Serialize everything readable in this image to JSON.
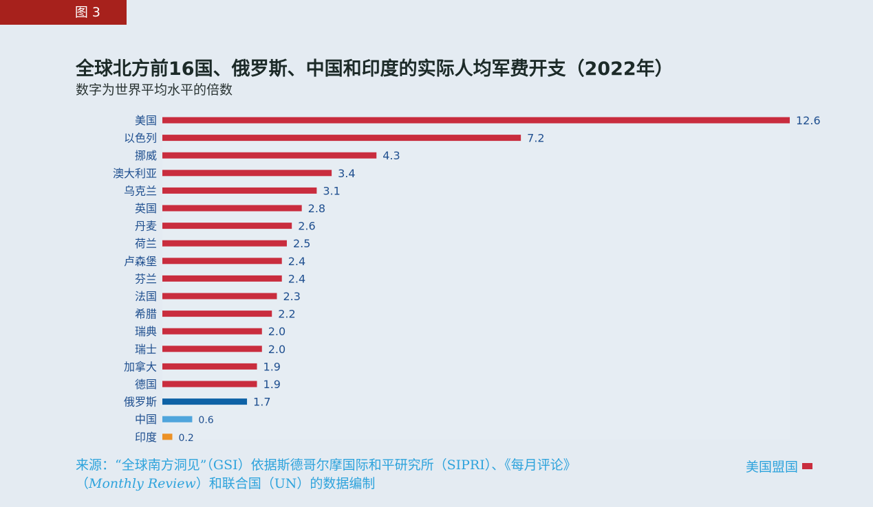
{
  "figure_label": "图 3",
  "chart_data": {
    "type": "bar",
    "orientation": "horizontal",
    "title": "全球北方前16国、俄罗斯、中国和印度的实际人均军费开支（2022年）",
    "subtitle": "数字为世界平均水平的倍数",
    "categories": [
      "美国",
      "以色列",
      "挪威",
      "澳大利亚",
      "乌克兰",
      "英国",
      "丹麦",
      "荷兰",
      "卢森堡",
      "芬兰",
      "法国",
      "希腊",
      "瑞典",
      "瑞士",
      "加拿大",
      "德国",
      "俄罗斯",
      "中国",
      "印度"
    ],
    "values": [
      12.6,
      7.2,
      4.3,
      3.4,
      3.1,
      2.8,
      2.6,
      2.5,
      2.4,
      2.4,
      2.3,
      2.2,
      2.0,
      2.0,
      1.9,
      1.9,
      1.7,
      0.6,
      0.2
    ],
    "value_labels": [
      "12.6",
      "7.2",
      "4.3",
      "3.4",
      "3.1",
      "2.8",
      "2.6",
      "2.5",
      "2.4",
      "2.4",
      "2.3",
      "2.2",
      "2.0",
      "2.0",
      "1.9",
      "1.9",
      "1.7",
      "0.6",
      "0.2"
    ],
    "colors": [
      "#c92d3e",
      "#c92d3e",
      "#c92d3e",
      "#c92d3e",
      "#c92d3e",
      "#c92d3e",
      "#c92d3e",
      "#c92d3e",
      "#c92d3e",
      "#c92d3e",
      "#c92d3e",
      "#c92d3e",
      "#c92d3e",
      "#c92d3e",
      "#c92d3e",
      "#c92d3e",
      "#0e62a6",
      "#4fa5dc",
      "#ec9126"
    ],
    "xlim": [
      0,
      12.6
    ],
    "grid": false,
    "legend": {
      "position": "bottom-right",
      "entries": [
        {
          "label": "美国盟国",
          "color": "#c92d3e"
        }
      ]
    }
  },
  "source": {
    "line1": "来源：“全球南方洞见”（GSI）依据斯德哥尔摩国际和平研究所（SIPRI）、《每月评论》",
    "line2_prefix": "（",
    "line2_italic": "Monthly Review",
    "line2_suffix": "）和联合国（UN）的数据编制"
  }
}
